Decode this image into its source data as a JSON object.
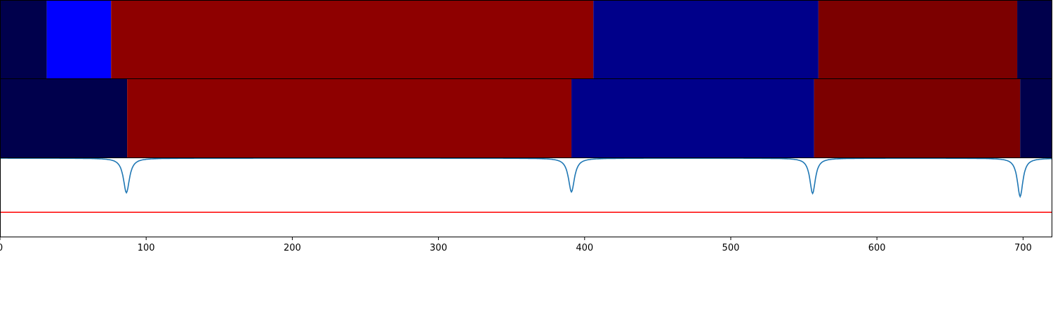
{
  "chart_data": [
    {
      "type": "heatmap",
      "xlim": [
        0,
        720
      ],
      "segments": [
        {
          "start": 0,
          "end": 32,
          "color": "#00004c"
        },
        {
          "start": 32,
          "end": 76,
          "color": "#0000ff"
        },
        {
          "start": 76,
          "end": 406,
          "color": "#8e0000"
        },
        {
          "start": 406,
          "end": 560,
          "color": "#00008a"
        },
        {
          "start": 560,
          "end": 696,
          "color": "#7c0000"
        },
        {
          "start": 696,
          "end": 720,
          "color": "#00004c"
        }
      ]
    },
    {
      "type": "heatmap",
      "xlim": [
        0,
        720
      ],
      "segments": [
        {
          "start": 0,
          "end": 87,
          "color": "#00004c"
        },
        {
          "start": 87,
          "end": 391,
          "color": "#8e0000"
        },
        {
          "start": 391,
          "end": 557,
          "color": "#00008a"
        },
        {
          "start": 557,
          "end": 698,
          "color": "#7c0000"
        },
        {
          "start": 698,
          "end": 720,
          "color": "#00004c"
        }
      ]
    },
    {
      "type": "line",
      "xlim": [
        0,
        720
      ],
      "ylim": [
        0,
        1.0
      ],
      "xticks": [
        0,
        100,
        200,
        300,
        400,
        500,
        600,
        700
      ],
      "xtick_labels": [
        "0",
        "100",
        "200",
        "300",
        "400",
        "500",
        "600",
        "700"
      ],
      "series": [
        {
          "color": "#1f77b4",
          "baseline": 1.0,
          "dips": [
            {
              "center": 86.5,
              "depth": 0.44,
              "width": 2.5
            },
            {
              "center": 391,
              "depth": 0.43,
              "width": 2.5
            },
            {
              "center": 556,
              "depth": 0.45,
              "width": 2.3
            },
            {
              "center": 698,
              "depth": 0.49,
              "width": 2.3
            }
          ]
        }
      ],
      "threshold": {
        "y": 0.31,
        "color": "#ff0000"
      }
    }
  ]
}
